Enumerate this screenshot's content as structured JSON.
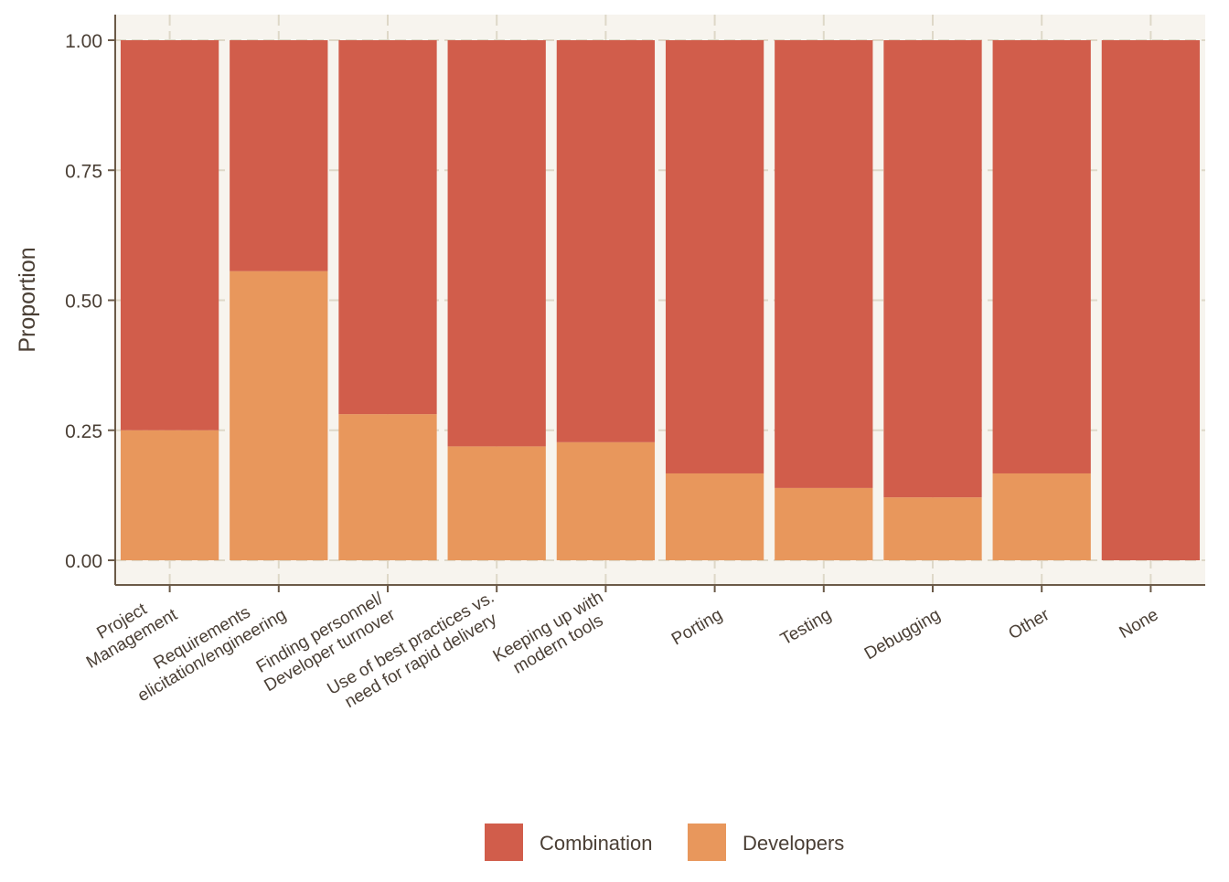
{
  "chart_data": {
    "type": "bar",
    "stacked": true,
    "categories": [
      [
        "Project",
        "Management"
      ],
      [
        "Requirements",
        "elicitation/engineering"
      ],
      [
        "Finding personnel/",
        "Developer turnover"
      ],
      [
        "Use of best practices vs.",
        "need for rapid delivery"
      ],
      [
        "Keeping up with",
        "modern tools"
      ],
      [
        "Porting"
      ],
      [
        "Testing"
      ],
      [
        "Debugging"
      ],
      [
        "Other"
      ],
      [
        "None"
      ]
    ],
    "series": [
      {
        "name": "Developers",
        "color": "#E8975C",
        "values": [
          0.25,
          0.556,
          0.281,
          0.219,
          0.227,
          0.167,
          0.139,
          0.121,
          0.167,
          0.0
        ]
      },
      {
        "name": "Combination",
        "color": "#D15D4B",
        "values": [
          0.75,
          0.444,
          0.719,
          0.781,
          0.773,
          0.833,
          0.861,
          0.879,
          0.833,
          1.0
        ]
      }
    ],
    "xlabel": "",
    "ylabel": "Proportion",
    "ylim": [
      0,
      1.05
    ],
    "yticks": [
      "0.00",
      "0.25",
      "0.50",
      "0.75",
      "1.00"
    ],
    "grid": true,
    "legend": {
      "position": "bottom",
      "entries": [
        {
          "label": "Combination",
          "color": "#D15D4B"
        },
        {
          "label": "Developers",
          "color": "#E8975C"
        }
      ]
    },
    "panel_background": "#F7F4EE",
    "axis_color": "#6B5A48"
  }
}
